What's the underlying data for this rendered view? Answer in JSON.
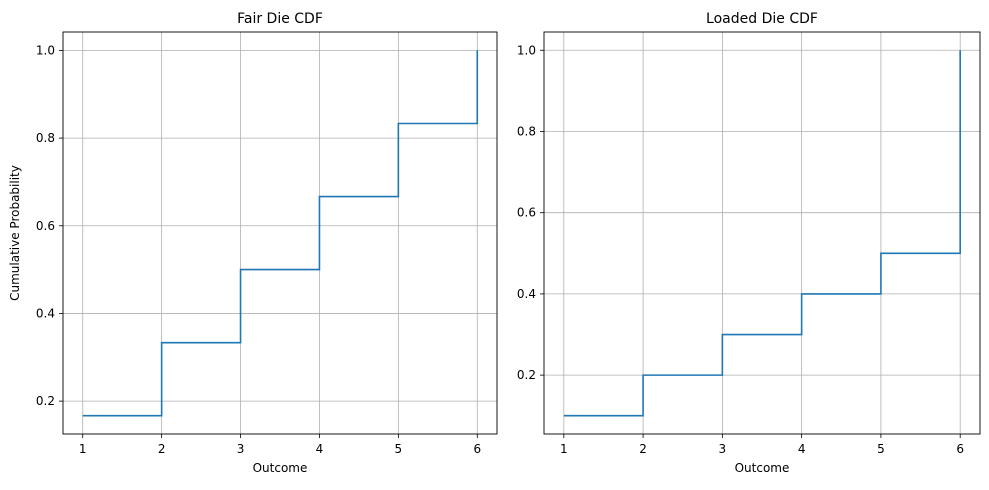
{
  "chart_data": [
    {
      "type": "line",
      "drawstyle": "steps-post",
      "title": "Fair Die CDF",
      "xlabel": "Outcome",
      "ylabel": "Cumulative Probability",
      "x": [
        1,
        2,
        3,
        4,
        5,
        6
      ],
      "series": [
        {
          "values": [
            0.1667,
            0.3333,
            0.5,
            0.6667,
            0.8333,
            1.0
          ]
        }
      ],
      "xlim": [
        0.75,
        6.25
      ],
      "ylim": [
        0.125,
        1.042
      ],
      "xticks": [
        "1",
        "2",
        "3",
        "4",
        "5",
        "6"
      ],
      "yticks": [
        "0.2",
        "0.4",
        "0.6",
        "0.8",
        "1.0"
      ],
      "ytick_values": [
        0.2,
        0.4,
        0.6,
        0.8,
        1.0
      ],
      "grid": true,
      "line_color": "#1f77b4"
    },
    {
      "type": "line",
      "drawstyle": "steps-post",
      "title": "Loaded Die CDF",
      "xlabel": "Outcome",
      "ylabel": "",
      "x": [
        1,
        2,
        3,
        4,
        5,
        6
      ],
      "series": [
        {
          "values": [
            0.1,
            0.2,
            0.3,
            0.4,
            0.5,
            1.0
          ]
        }
      ],
      "xlim": [
        0.75,
        6.25
      ],
      "ylim": [
        0.055,
        1.045
      ],
      "xticks": [
        "1",
        "2",
        "3",
        "4",
        "5",
        "6"
      ],
      "yticks": [
        "0.2",
        "0.4",
        "0.6",
        "0.8",
        "1.0"
      ],
      "ytick_values": [
        0.2,
        0.4,
        0.6,
        0.8,
        1.0
      ],
      "grid": true,
      "line_color": "#1f77b4"
    }
  ]
}
